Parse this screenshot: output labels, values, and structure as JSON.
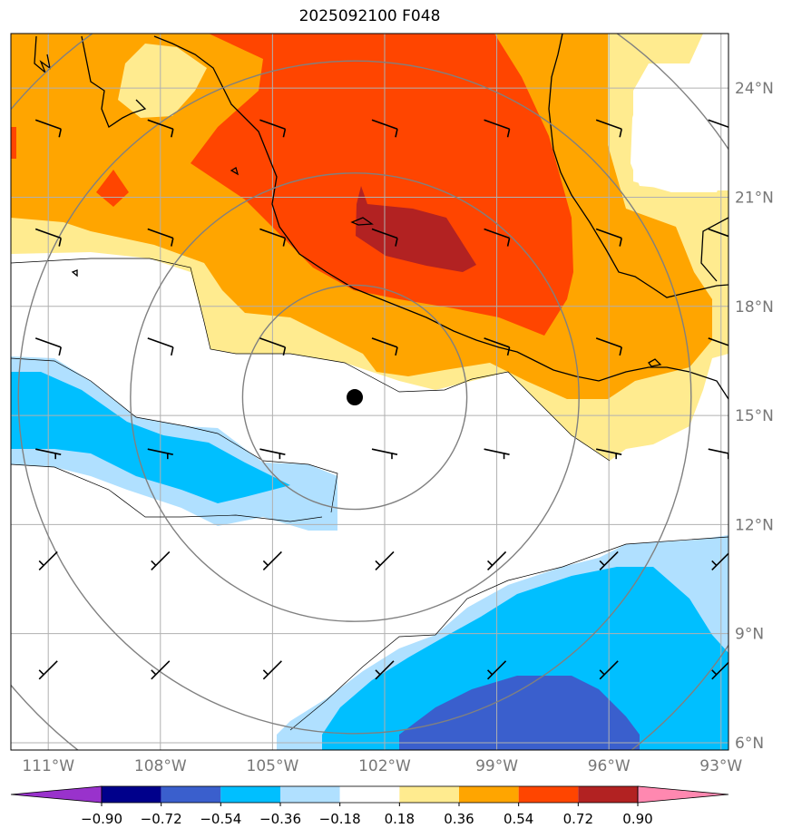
{
  "title": "2025092100 F048",
  "map": {
    "lon_range": [
      -112.0,
      -92.8
    ],
    "lat_range": [
      5.8,
      25.5
    ],
    "lat_labels": [
      "6°N",
      "9°N",
      "12°N",
      "15°N",
      "18°N",
      "21°N",
      "24°N"
    ],
    "lat_values": [
      6,
      9,
      12,
      15,
      18,
      21,
      24
    ],
    "lon_labels": [
      "111°W",
      "108°W",
      "105°W",
      "102°W",
      "99°W",
      "96°W",
      "93°W"
    ],
    "lon_values": [
      -111,
      -108,
      -105,
      -102,
      -99,
      -96,
      -93
    ],
    "storm_center": {
      "lon": -102.8,
      "lat": 15.5
    },
    "range_rings_deg": [
      3,
      6,
      9,
      12
    ],
    "colors": {
      "land_line": "#000000",
      "grid": "#b0b0b0",
      "ring": "#808080"
    }
  },
  "colorbar": {
    "labels": [
      "−0.90",
      "−0.72",
      "−0.54",
      "−0.36",
      "−0.18",
      "0.18",
      "0.36",
      "0.54",
      "0.72",
      "0.90"
    ],
    "colors": [
      "#9932cc",
      "#00008b",
      "#3a5fcd",
      "#00bfff",
      "#b0e0ff",
      "#ffffff",
      "#ffeb8f",
      "#ffa500",
      "#ff4500",
      "#b22222",
      "#ff88b0"
    ]
  }
}
